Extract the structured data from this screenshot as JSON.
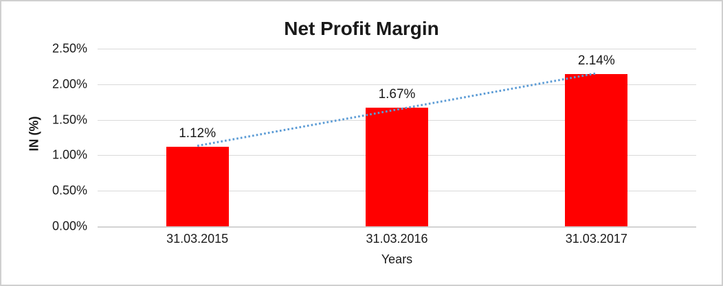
{
  "chart_data": {
    "type": "bar",
    "title": "Net Profit Margin",
    "xlabel": "Years",
    "ylabel": "IN (%)",
    "categories": [
      "31.03.2015",
      "31.03.2016",
      "31.03.2017"
    ],
    "values": [
      1.12,
      1.67,
      2.14
    ],
    "data_labels": [
      "1.12%",
      "1.67%",
      "2.14%"
    ],
    "ylim": [
      0,
      2.5
    ],
    "ytick_step": 0.5,
    "ytick_labels": [
      "0.00%",
      "0.50%",
      "1.00%",
      "1.50%",
      "2.00%",
      "2.50%"
    ],
    "grid": true,
    "legend": "none",
    "bar_color": "#ff0000",
    "gridline_color": "#d9d9d9",
    "axis_line_color": "#d3d3d3",
    "trendline": {
      "type": "linear",
      "style": "dotted",
      "color": "#5b9bd5"
    }
  }
}
